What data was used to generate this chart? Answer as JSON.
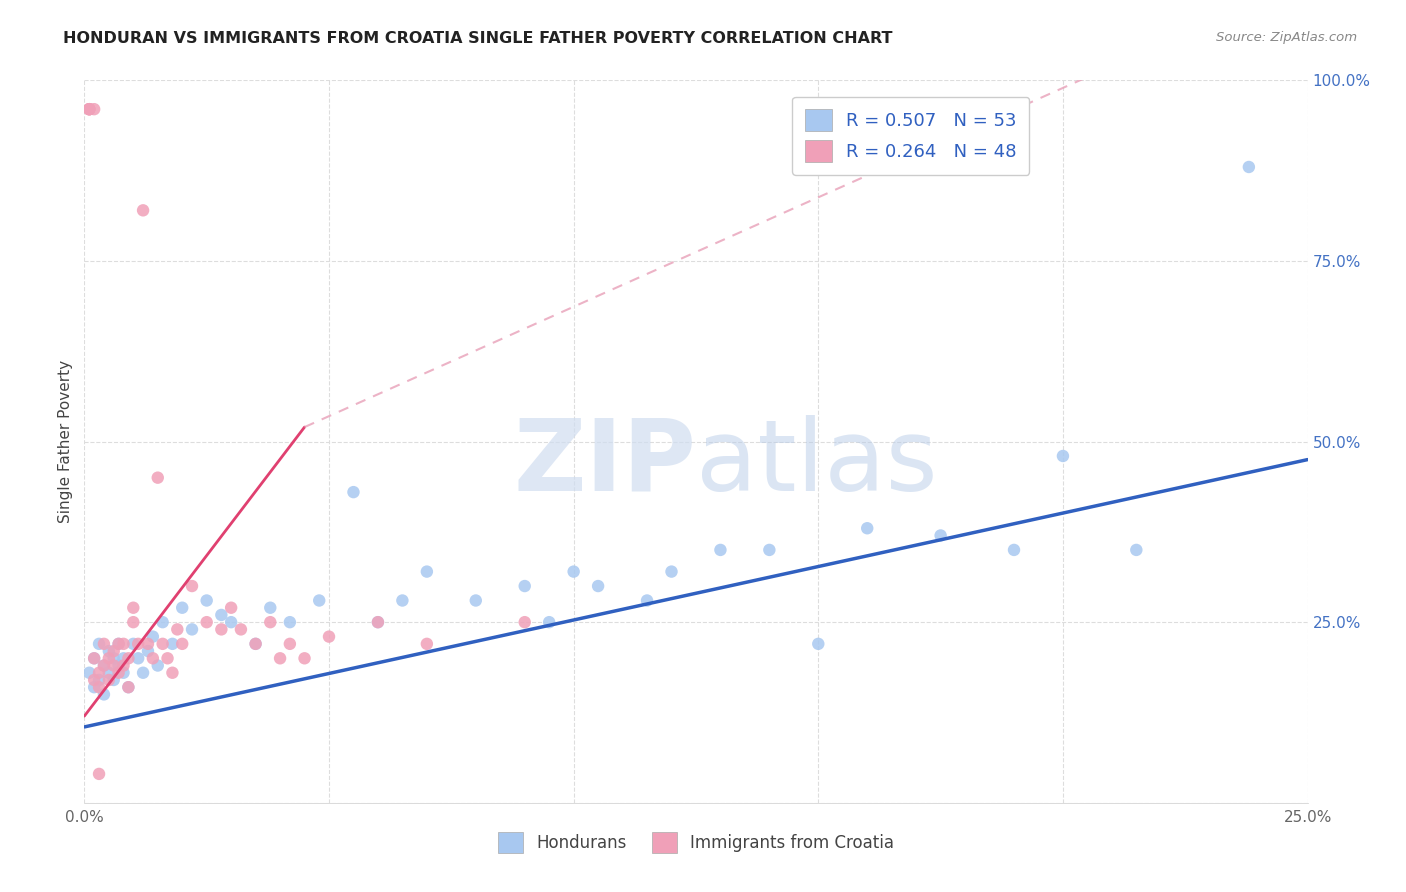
{
  "title": "HONDURAN VS IMMIGRANTS FROM CROATIA SINGLE FATHER POVERTY CORRELATION CHART",
  "source": "Source: ZipAtlas.com",
  "ylabel": "Single Father Poverty",
  "legend_label_1": "Hondurans",
  "legend_label_2": "Immigrants from Croatia",
  "R1": 0.507,
  "N1": 53,
  "R2": 0.264,
  "N2": 48,
  "color1": "#A8C8F0",
  "color2": "#F0A0B8",
  "line_color1": "#3060C0",
  "line_color2": "#E04070",
  "dashed_line_color": "#E8A0B8",
  "xlim": [
    0.0,
    0.25
  ],
  "ylim": [
    0.0,
    1.0
  ],
  "xtick_positions": [
    0.0,
    0.05,
    0.1,
    0.15,
    0.2,
    0.25
  ],
  "xtick_labels": [
    "0.0%",
    "",
    "",
    "",
    "",
    "25.0%"
  ],
  "ytick_positions": [
    0.0,
    0.25,
    0.5,
    0.75,
    1.0
  ],
  "ytick_labels_right": [
    "",
    "25.0%",
    "50.0%",
    "75.0%",
    "100.0%"
  ],
  "blue_line": [
    0.0,
    0.105,
    0.25,
    0.475
  ],
  "pink_solid_line": [
    0.0,
    0.12,
    0.045,
    0.52
  ],
  "pink_dashed_line": [
    0.045,
    0.52,
    0.22,
    1.05
  ],
  "honduran_x": [
    0.001,
    0.002,
    0.002,
    0.003,
    0.003,
    0.004,
    0.004,
    0.005,
    0.005,
    0.006,
    0.006,
    0.007,
    0.007,
    0.008,
    0.008,
    0.009,
    0.01,
    0.011,
    0.012,
    0.013,
    0.014,
    0.015,
    0.016,
    0.018,
    0.02,
    0.022,
    0.025,
    0.028,
    0.03,
    0.035,
    0.038,
    0.042,
    0.048,
    0.055,
    0.06,
    0.065,
    0.07,
    0.08,
    0.09,
    0.095,
    0.1,
    0.105,
    0.115,
    0.12,
    0.13,
    0.14,
    0.15,
    0.16,
    0.175,
    0.19,
    0.2,
    0.215,
    0.238
  ],
  "honduran_y": [
    0.18,
    0.16,
    0.2,
    0.17,
    0.22,
    0.19,
    0.15,
    0.21,
    0.18,
    0.2,
    0.17,
    0.19,
    0.22,
    0.18,
    0.2,
    0.16,
    0.22,
    0.2,
    0.18,
    0.21,
    0.23,
    0.19,
    0.25,
    0.22,
    0.27,
    0.24,
    0.28,
    0.26,
    0.25,
    0.22,
    0.27,
    0.25,
    0.28,
    0.43,
    0.25,
    0.28,
    0.32,
    0.28,
    0.3,
    0.25,
    0.32,
    0.3,
    0.28,
    0.32,
    0.35,
    0.35,
    0.22,
    0.38,
    0.37,
    0.35,
    0.48,
    0.35,
    0.88
  ],
  "croatia_x": [
    0.001,
    0.001,
    0.001,
    0.001,
    0.002,
    0.002,
    0.002,
    0.003,
    0.003,
    0.004,
    0.004,
    0.005,
    0.005,
    0.006,
    0.006,
    0.007,
    0.007,
    0.008,
    0.008,
    0.009,
    0.009,
    0.01,
    0.01,
    0.011,
    0.012,
    0.013,
    0.014,
    0.015,
    0.016,
    0.017,
    0.018,
    0.019,
    0.02,
    0.022,
    0.025,
    0.028,
    0.03,
    0.032,
    0.035,
    0.038,
    0.04,
    0.042,
    0.045,
    0.05,
    0.06,
    0.07,
    0.09,
    0.003
  ],
  "croatia_y": [
    0.96,
    0.96,
    0.96,
    0.96,
    0.96,
    0.2,
    0.17,
    0.18,
    0.16,
    0.19,
    0.22,
    0.2,
    0.17,
    0.19,
    0.21,
    0.18,
    0.22,
    0.19,
    0.22,
    0.2,
    0.16,
    0.25,
    0.27,
    0.22,
    0.82,
    0.22,
    0.2,
    0.45,
    0.22,
    0.2,
    0.18,
    0.24,
    0.22,
    0.3,
    0.25,
    0.24,
    0.27,
    0.24,
    0.22,
    0.25,
    0.2,
    0.22,
    0.2,
    0.23,
    0.25,
    0.22,
    0.25,
    0.04
  ],
  "watermark_zip": "ZIP",
  "watermark_atlas": "atlas",
  "background_color": "#FFFFFF",
  "grid_color": "#DDDDDD"
}
